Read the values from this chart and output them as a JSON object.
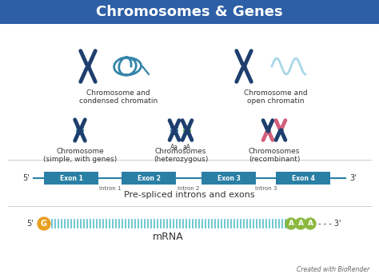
{
  "title": "Chromosomes & Genes",
  "title_bg": "#2d5fa6",
  "title_color": "#ffffff",
  "bg_color": "#f0f4f8",
  "body_bg": "#ffffff",
  "teal": "#2a7fa5",
  "dark_blue": "#1e3f6e",
  "pink": "#d45f7a",
  "green_circle": "#8cb840",
  "gold_circle": "#e8a020",
  "exon_color": "#2a7fa5",
  "intron_line_color": "#2a7fa5",
  "mrna_teal": "#4ab8c8",
  "label_color": "#333333",
  "intron_label_color": "#555555",
  "bottom_text": "Created with BioRender",
  "exons": [
    "Exon 1",
    "Exon 2",
    "Exon 3",
    "Exon 4"
  ],
  "introns": [
    "Intron 1",
    "Intron 2",
    "Intron 3"
  ],
  "prespliced_label": "Pre-spliced introns and exons",
  "mrna_label": "mRNA"
}
